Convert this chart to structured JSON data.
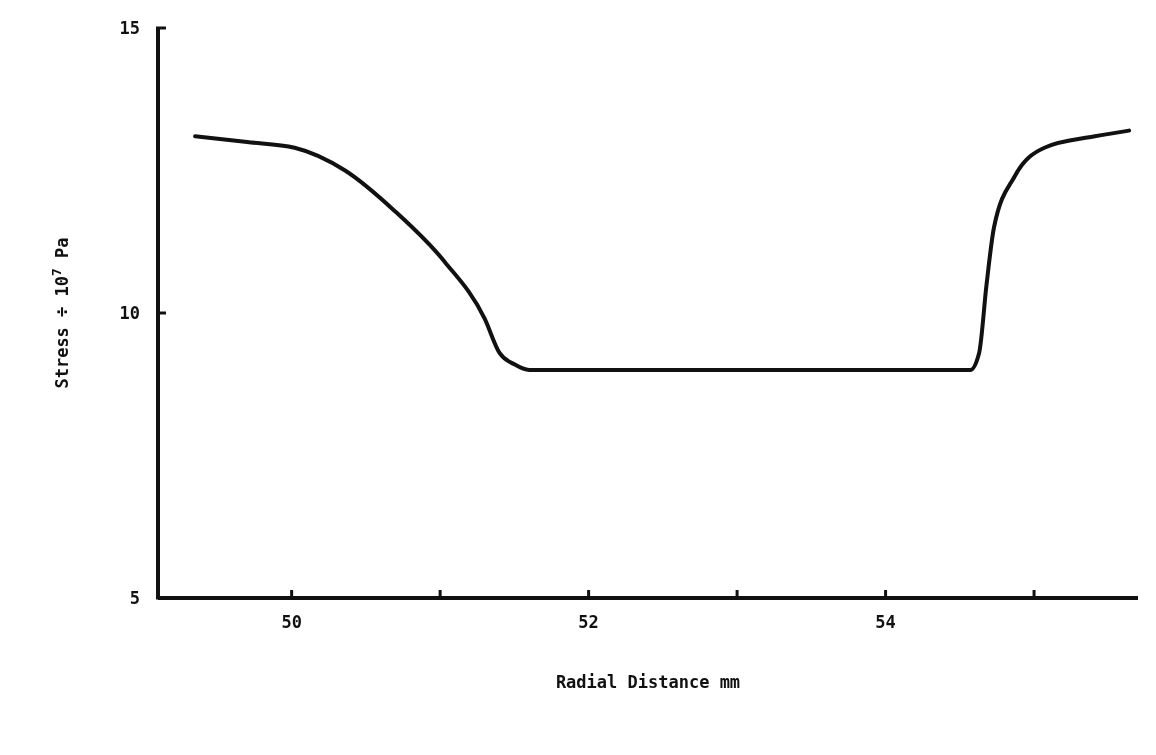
{
  "chart_data": {
    "type": "line",
    "xlabel": "Radial Distance mm",
    "ylabel": "Stress ÷ 10$^{7}$ Pa",
    "xlim": [
      49.1,
      55.7
    ],
    "ylim": [
      5,
      15
    ],
    "xticks": [
      50,
      {
        "value": 51,
        "label": null
      },
      52,
      {
        "value": 53,
        "label": null
      },
      54,
      {
        "value": 55,
        "label": null
      }
    ],
    "yticks": [
      5,
      10,
      15
    ],
    "grid": false,
    "legend": false,
    "marker": "none",
    "line_style": "solid",
    "series": [
      {
        "color": "#111111",
        "x": [
          49.35,
          49.7,
          50.02,
          50.36,
          50.69,
          51.03,
          51.3,
          51.4,
          51.5,
          51.6,
          52.5,
          53.5,
          54.57,
          54.63,
          54.68,
          54.73,
          54.87,
          55.07,
          55.41,
          55.64
        ],
        "values": [
          13.1,
          13.0,
          12.9,
          12.5,
          11.8,
          10.9,
          9.9,
          9.3,
          9.1,
          9.0,
          9.0,
          9.0,
          9.0,
          9.3,
          10.5,
          11.5,
          12.4,
          12.9,
          13.1,
          13.2
        ]
      }
    ]
  }
}
